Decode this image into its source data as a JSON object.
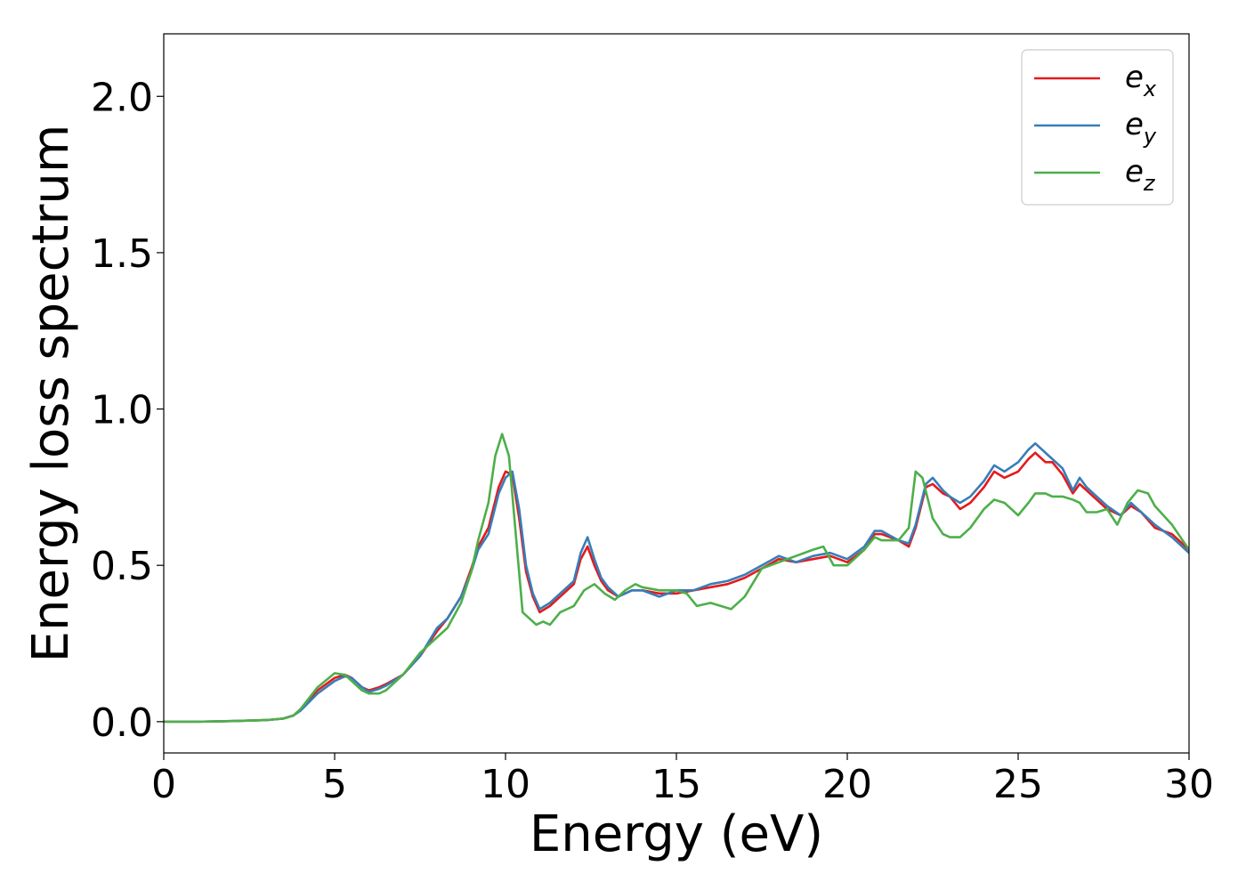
{
  "chart_data": {
    "type": "line",
    "xlabel": "Energy (eV)",
    "ylabel": "Energy loss spectrum",
    "xlim": [
      0,
      30
    ],
    "ylim": [
      -0.1,
      2.2
    ],
    "xticks": [
      0,
      5,
      10,
      15,
      20,
      25,
      30
    ],
    "xtick_labels": [
      "0",
      "5",
      "10",
      "15",
      "20",
      "25",
      "30"
    ],
    "yticks": [
      0.0,
      0.5,
      1.0,
      1.5,
      2.0
    ],
    "ytick_labels": [
      "0.0",
      "0.5",
      "1.0",
      "1.5",
      "2.0"
    ],
    "grid": false,
    "legend_position": "top-right",
    "series": [
      {
        "name": "e_x",
        "label_base": "e",
        "label_sub": "x",
        "color": "#e41a1c",
        "x": [
          0,
          1,
          2,
          3,
          3.5,
          3.8,
          4,
          4.5,
          5,
          5.3,
          5.5,
          5.8,
          6,
          6.3,
          6.5,
          7,
          7.5,
          8,
          8.3,
          8.7,
          9,
          9.2,
          9.5,
          9.8,
          10,
          10.2,
          10.4,
          10.6,
          10.8,
          11,
          11.3,
          11.6,
          12,
          12.2,
          12.4,
          12.6,
          12.8,
          13,
          13.3,
          13.7,
          14,
          14.5,
          15,
          15.5,
          16,
          16.5,
          17,
          17.5,
          18,
          18.5,
          19,
          19.5,
          20,
          20.5,
          20.8,
          21,
          21.5,
          21.8,
          22,
          22.3,
          22.5,
          22.8,
          23,
          23.3,
          23.6,
          24,
          24.3,
          24.6,
          25,
          25.3,
          25.5,
          25.8,
          26,
          26.3,
          26.6,
          26.8,
          27,
          27.3,
          27.6,
          28,
          28.3,
          28.6,
          29,
          29.5,
          30
        ],
        "y": [
          0,
          0,
          0.002,
          0.005,
          0.01,
          0.02,
          0.04,
          0.1,
          0.14,
          0.15,
          0.14,
          0.11,
          0.1,
          0.11,
          0.12,
          0.15,
          0.21,
          0.29,
          0.33,
          0.4,
          0.49,
          0.56,
          0.62,
          0.75,
          0.8,
          0.79,
          0.65,
          0.48,
          0.4,
          0.35,
          0.37,
          0.4,
          0.44,
          0.52,
          0.56,
          0.5,
          0.45,
          0.42,
          0.4,
          0.42,
          0.42,
          0.41,
          0.41,
          0.42,
          0.43,
          0.44,
          0.46,
          0.49,
          0.52,
          0.51,
          0.52,
          0.53,
          0.51,
          0.55,
          0.6,
          0.6,
          0.58,
          0.56,
          0.62,
          0.75,
          0.76,
          0.73,
          0.72,
          0.68,
          0.7,
          0.75,
          0.8,
          0.78,
          0.8,
          0.84,
          0.86,
          0.83,
          0.83,
          0.79,
          0.73,
          0.76,
          0.74,
          0.71,
          0.68,
          0.66,
          0.69,
          0.67,
          0.62,
          0.6,
          0.55
        ]
      },
      {
        "name": "e_y",
        "label_base": "e",
        "label_sub": "y",
        "color": "#377eb8",
        "x": [
          0,
          1,
          2,
          3,
          3.5,
          3.8,
          4,
          4.5,
          5,
          5.3,
          5.5,
          5.8,
          6,
          6.3,
          6.5,
          7,
          7.5,
          8,
          8.3,
          8.7,
          9,
          9.2,
          9.5,
          9.8,
          10,
          10.2,
          10.4,
          10.6,
          10.8,
          11,
          11.3,
          11.6,
          12,
          12.2,
          12.4,
          12.6,
          12.8,
          13,
          13.3,
          13.7,
          14,
          14.5,
          15,
          15.5,
          16,
          16.5,
          17,
          17.5,
          18,
          18.5,
          19,
          19.5,
          20,
          20.5,
          20.8,
          21,
          21.5,
          21.8,
          22,
          22.3,
          22.5,
          22.8,
          23,
          23.3,
          23.6,
          24,
          24.3,
          24.6,
          25,
          25.3,
          25.5,
          25.8,
          26,
          26.3,
          26.6,
          26.8,
          27,
          27.3,
          27.6,
          28,
          28.3,
          28.6,
          29,
          29.5,
          30
        ],
        "y": [
          0,
          0,
          0.002,
          0.005,
          0.01,
          0.02,
          0.035,
          0.09,
          0.13,
          0.145,
          0.14,
          0.11,
          0.095,
          0.105,
          0.115,
          0.15,
          0.21,
          0.3,
          0.33,
          0.4,
          0.48,
          0.55,
          0.6,
          0.73,
          0.78,
          0.8,
          0.68,
          0.5,
          0.41,
          0.36,
          0.38,
          0.41,
          0.45,
          0.54,
          0.59,
          0.52,
          0.46,
          0.43,
          0.4,
          0.42,
          0.42,
          0.4,
          0.42,
          0.42,
          0.44,
          0.45,
          0.47,
          0.5,
          0.53,
          0.51,
          0.53,
          0.54,
          0.52,
          0.56,
          0.61,
          0.61,
          0.58,
          0.57,
          0.63,
          0.76,
          0.78,
          0.74,
          0.72,
          0.7,
          0.72,
          0.77,
          0.82,
          0.8,
          0.83,
          0.87,
          0.89,
          0.86,
          0.84,
          0.81,
          0.74,
          0.78,
          0.75,
          0.72,
          0.69,
          0.66,
          0.7,
          0.67,
          0.63,
          0.59,
          0.54
        ]
      },
      {
        "name": "e_z",
        "label_base": "e",
        "label_sub": "z",
        "color": "#4daf4a",
        "x": [
          0,
          1,
          2,
          3,
          3.5,
          3.8,
          4,
          4.5,
          5,
          5.3,
          5.5,
          5.8,
          6,
          6.3,
          6.5,
          7,
          7.5,
          8,
          8.3,
          8.7,
          9,
          9.2,
          9.5,
          9.7,
          9.9,
          10.1,
          10.3,
          10.5,
          10.7,
          10.9,
          11.1,
          11.3,
          11.6,
          12,
          12.3,
          12.6,
          12.9,
          13.2,
          13.5,
          13.8,
          14,
          14.5,
          15,
          15.3,
          15.6,
          16,
          16.3,
          16.6,
          17,
          17.5,
          18,
          18.5,
          19,
          19.3,
          19.6,
          20,
          20.5,
          20.8,
          21,
          21.5,
          21.8,
          22,
          22.2,
          22.5,
          22.8,
          23,
          23.3,
          23.6,
          24,
          24.3,
          24.6,
          25,
          25.3,
          25.5,
          25.8,
          26,
          26.3,
          26.6,
          26.8,
          27,
          27.3,
          27.6,
          27.9,
          28.2,
          28.5,
          28.8,
          29,
          29.5,
          30
        ],
        "y": [
          0,
          0,
          0.002,
          0.005,
          0.01,
          0.02,
          0.04,
          0.11,
          0.155,
          0.15,
          0.13,
          0.1,
          0.09,
          0.09,
          0.1,
          0.15,
          0.22,
          0.27,
          0.3,
          0.38,
          0.48,
          0.58,
          0.7,
          0.85,
          0.92,
          0.85,
          0.6,
          0.35,
          0.33,
          0.31,
          0.32,
          0.31,
          0.35,
          0.37,
          0.42,
          0.44,
          0.41,
          0.39,
          0.42,
          0.44,
          0.43,
          0.42,
          0.42,
          0.41,
          0.37,
          0.38,
          0.37,
          0.36,
          0.4,
          0.49,
          0.51,
          0.53,
          0.55,
          0.56,
          0.5,
          0.5,
          0.55,
          0.59,
          0.58,
          0.58,
          0.62,
          0.8,
          0.78,
          0.65,
          0.6,
          0.59,
          0.59,
          0.62,
          0.68,
          0.71,
          0.7,
          0.66,
          0.7,
          0.73,
          0.73,
          0.72,
          0.72,
          0.71,
          0.7,
          0.67,
          0.67,
          0.68,
          0.63,
          0.7,
          0.74,
          0.73,
          0.69,
          0.63,
          0.55
        ]
      }
    ]
  }
}
